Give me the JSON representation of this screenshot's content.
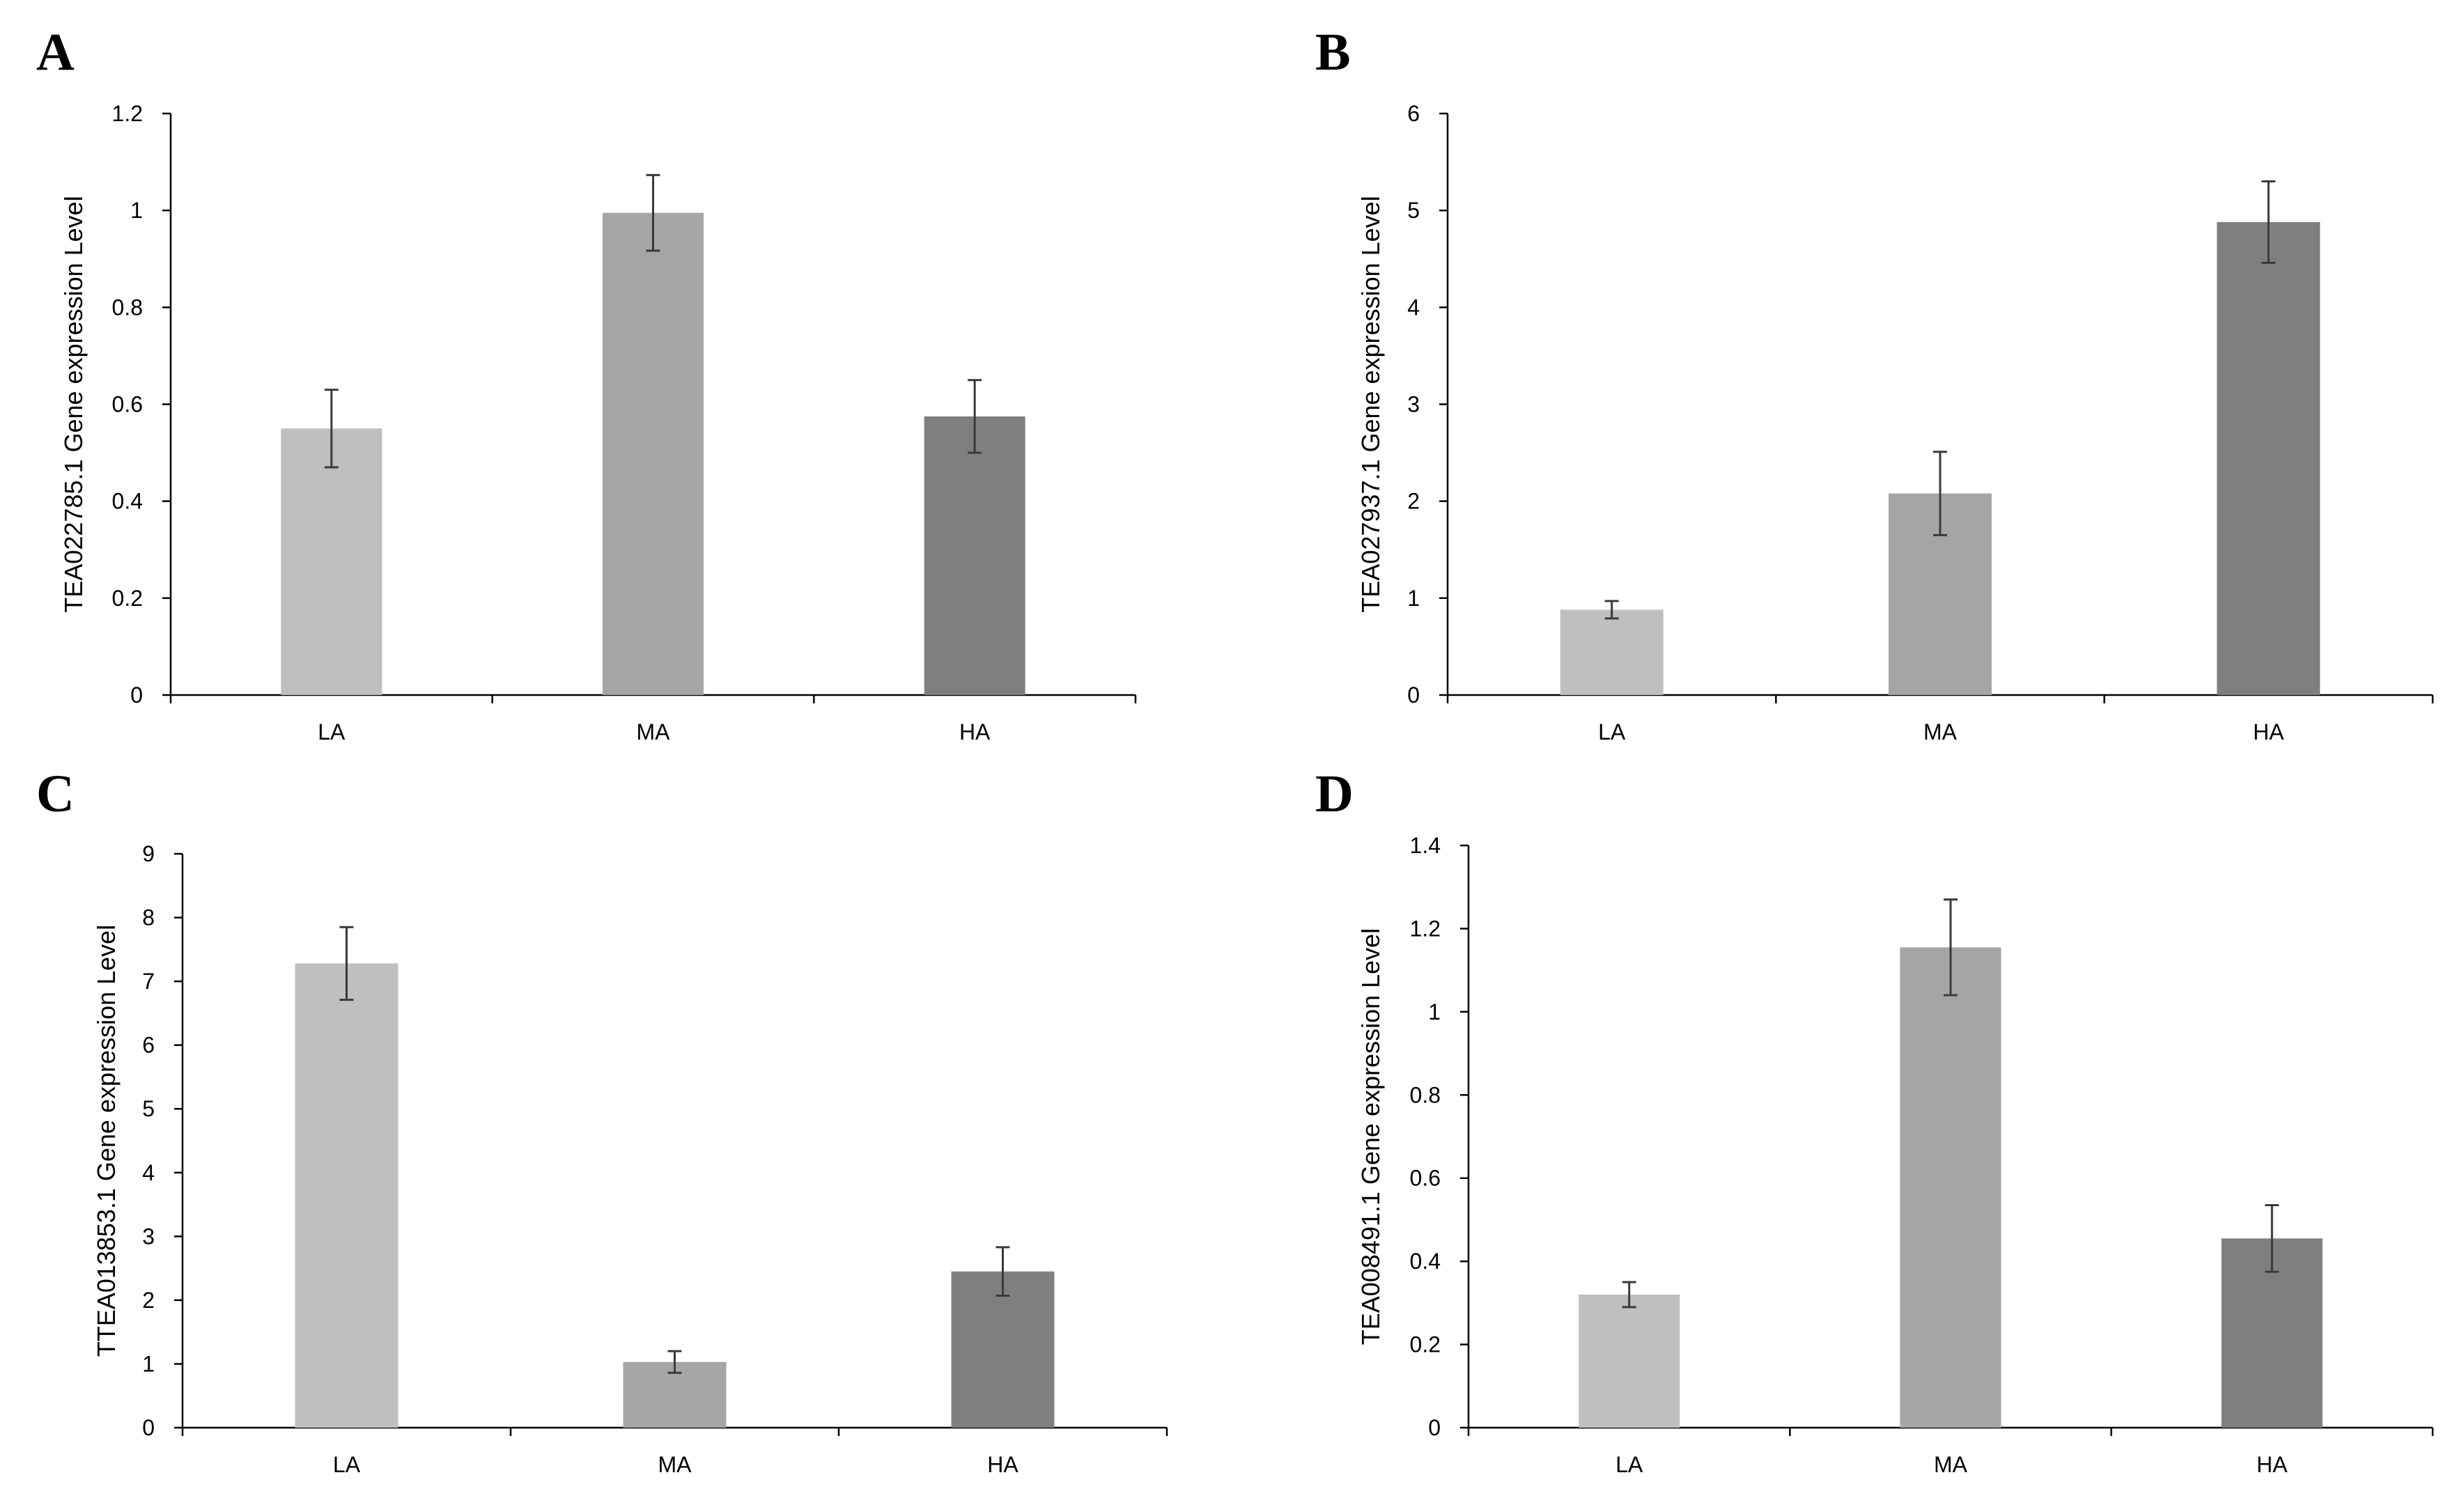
{
  "chart_data": [
    {
      "panel": "A",
      "type": "bar",
      "categories": [
        "LA",
        "MA",
        "HA"
      ],
      "values": [
        0.55,
        0.995,
        0.575
      ],
      "errors": [
        0.08,
        0.078,
        0.075
      ],
      "colors": [
        "#bfbfbf",
        "#a5a5a5",
        "#7f7f7f"
      ],
      "ylabel": "TEA022785.1 Gene expression Level",
      "ylim": [
        0,
        1.2
      ],
      "yticks": [
        0,
        0.2,
        0.4,
        0.6,
        0.8,
        1,
        1.2
      ],
      "ytick_labels": [
        "0",
        "0.2",
        "0.4",
        "0.6",
        "0.8",
        "1",
        "1.2"
      ],
      "grid": false
    },
    {
      "panel": "B",
      "type": "bar",
      "categories": [
        "LA",
        "MA",
        "HA"
      ],
      "values": [
        0.88,
        2.08,
        4.88
      ],
      "errors": [
        0.09,
        0.43,
        0.42
      ],
      "colors": [
        "#bfbfbf",
        "#a5a5a5",
        "#7f7f7f"
      ],
      "ylabel": "TEA027937.1 Gene expression Level",
      "ylim": [
        0,
        6
      ],
      "yticks": [
        0,
        1,
        2,
        3,
        4,
        5,
        6
      ],
      "ytick_labels": [
        "0",
        "1",
        "2",
        "3",
        "4",
        "5",
        "6"
      ],
      "grid": false
    },
    {
      "panel": "C",
      "type": "bar",
      "categories": [
        "LA",
        "MA",
        "HA"
      ],
      "values": [
        7.28,
        1.03,
        2.45
      ],
      "errors": [
        0.57,
        0.17,
        0.38
      ],
      "colors": [
        "#bfbfbf",
        "#a5a5a5",
        "#7f7f7f"
      ],
      "ylabel": "TTEA013853.1 Gene expression Level",
      "ylim": [
        0,
        9
      ],
      "yticks": [
        0,
        1,
        2,
        3,
        4,
        5,
        6,
        7,
        8,
        9
      ],
      "ytick_labels": [
        "0",
        "1",
        "2",
        "3",
        "4",
        "5",
        "6",
        "7",
        "8",
        "9"
      ],
      "grid": false
    },
    {
      "panel": "D",
      "type": "bar",
      "categories": [
        "LA",
        "MA",
        "HA"
      ],
      "values": [
        0.32,
        1.155,
        0.455
      ],
      "errors": [
        0.03,
        0.115,
        0.08
      ],
      "colors": [
        "#bfbfbf",
        "#a5a5a5",
        "#7f7f7f"
      ],
      "ylabel": "TEA008491.1 Gene expression Level",
      "ylim": [
        0,
        1.4
      ],
      "yticks": [
        0,
        0.2,
        0.4,
        0.6,
        0.8,
        1,
        1.2,
        1.4
      ],
      "ytick_labels": [
        "0",
        "0.2",
        "0.4",
        "0.6",
        "0.8",
        "1",
        "1.2",
        "1.4"
      ],
      "grid": false
    }
  ]
}
